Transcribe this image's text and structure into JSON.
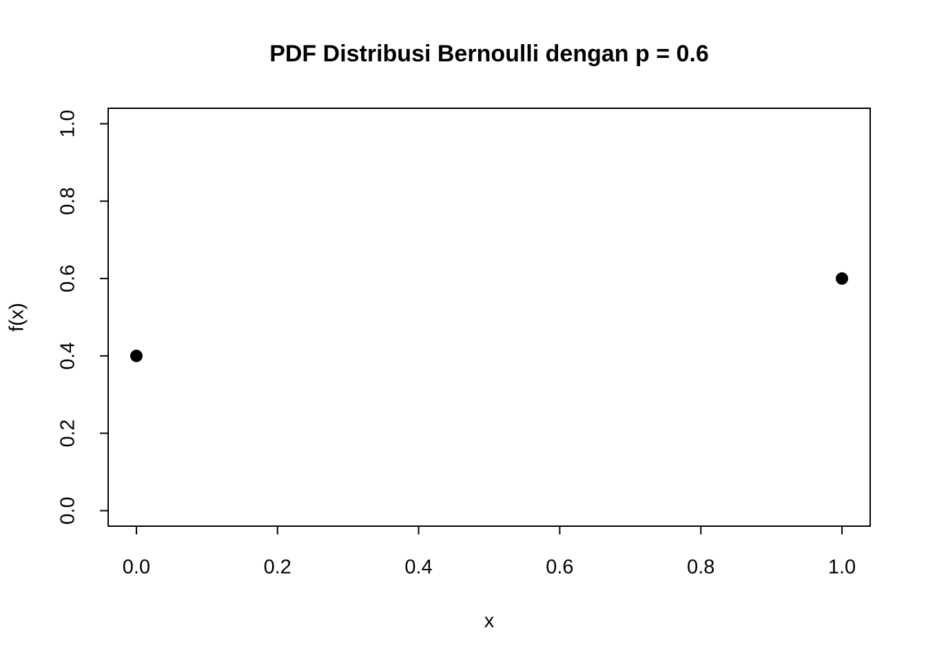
{
  "chart_data": {
    "type": "scatter",
    "title": "PDF Distribusi Bernoulli dengan p = 0.6",
    "xlabel": "x",
    "ylabel": "f(x)",
    "x": [
      0,
      1
    ],
    "values": [
      0.4,
      0.6
    ],
    "color": "#000000",
    "xlim": [
      -0.04,
      1.04
    ],
    "ylim": [
      -0.04,
      1.04
    ],
    "xticks": [
      {
        "value": 0,
        "label": "0.0"
      },
      0.2,
      0.4,
      0.6,
      0.8,
      {
        "value": 1,
        "label": "1.0"
      }
    ],
    "yticks": [
      {
        "value": 0,
        "label": "0.0"
      },
      0.2,
      0.4,
      0.6,
      0.8,
      {
        "value": 1,
        "label": "1.0"
      }
    ],
    "grid": false
  }
}
